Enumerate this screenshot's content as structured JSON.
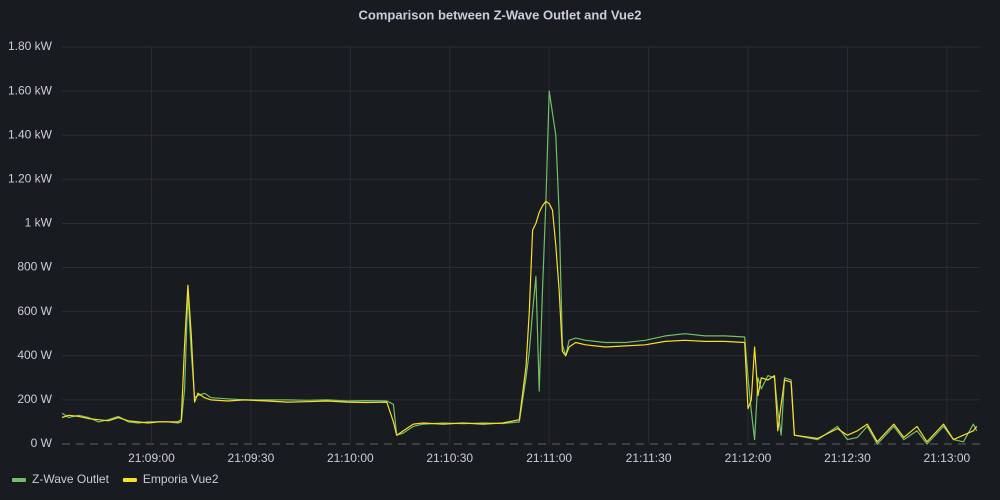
{
  "chart_data": {
    "type": "line",
    "title": "Comparison between Z-Wave Outlet and Vue2",
    "x": [
      76113,
      76115,
      76118,
      76121,
      76124,
      76127,
      76130,
      76133,
      76136,
      76139,
      76142,
      76145,
      76148,
      76149,
      76150,
      76151,
      76152,
      76153,
      76154,
      76156,
      76158,
      76163,
      76168,
      76175,
      76181,
      76187,
      76193,
      76199,
      76205,
      76211,
      76213,
      76214,
      76216,
      76219,
      76222,
      76228,
      76234,
      76240,
      76246,
      76251,
      76253,
      76254,
      76255,
      76256,
      76257,
      76258,
      76259,
      76260,
      76261,
      76262,
      76263,
      76264,
      76265,
      76266,
      76268,
      76271,
      76277,
      76283,
      76289,
      76295,
      76301,
      76307,
      76313,
      76319,
      76320,
      76321,
      76322,
      76323,
      76324,
      76326,
      76328,
      76329,
      76330,
      76331,
      76333,
      76334,
      76341,
      76347,
      76350,
      76353,
      76356,
      76359,
      76364,
      76367,
      76371,
      76374,
      76379,
      76382,
      76385,
      76388,
      76389
    ],
    "series": [
      {
        "name": "Z-Wave Outlet",
        "color": "#73bf69",
        "values": [
          140,
          120,
          130,
          120,
          100,
          110,
          125,
          100,
          95,
          100,
          100,
          100,
          95,
          100,
          250,
          690,
          420,
          210,
          220,
          230,
          210,
          205,
          200,
          200,
          200,
          198,
          200,
          195,
          197,
          195,
          180,
          40,
          50,
          80,
          90,
          95,
          92,
          95,
          93,
          100,
          300,
          420,
          600,
          760,
          240,
          700,
          1100,
          1600,
          1500,
          1400,
          1050,
          450,
          400,
          470,
          480,
          470,
          460,
          460,
          470,
          490,
          500,
          490,
          490,
          485,
          300,
          150,
          20,
          300,
          250,
          310,
          300,
          150,
          40,
          300,
          290,
          40,
          20,
          80,
          20,
          30,
          80,
          0,
          80,
          20,
          60,
          0,
          80,
          20,
          10,
          90,
          60
        ]
      },
      {
        "name": "Emporia Vue2",
        "color": "#fade2a",
        "values": [
          120,
          130,
          125,
          115,
          110,
          105,
          120,
          105,
          100,
          95,
          100,
          100,
          100,
          110,
          450,
          720,
          500,
          190,
          230,
          210,
          200,
          195,
          200,
          195,
          190,
          192,
          195,
          190,
          188,
          190,
          100,
          40,
          60,
          90,
          95,
          90,
          95,
          90,
          95,
          110,
          350,
          600,
          970,
          1000,
          1050,
          1080,
          1100,
          1090,
          1060,
          900,
          700,
          420,
          400,
          440,
          460,
          450,
          440,
          445,
          450,
          465,
          470,
          465,
          465,
          460,
          160,
          200,
          440,
          220,
          300,
          290,
          310,
          60,
          180,
          290,
          280,
          40,
          25,
          70,
          40,
          60,
          90,
          10,
          90,
          30,
          80,
          10,
          90,
          20,
          40,
          60,
          80
        ]
      }
    ],
    "xlim": [
      76113,
      76390
    ],
    "xticks": [
      {
        "value": 76140,
        "label": "21:09:00"
      },
      {
        "value": 76170,
        "label": "21:09:30"
      },
      {
        "value": 76200,
        "label": "21:10:00"
      },
      {
        "value": 76230,
        "label": "21:10:30"
      },
      {
        "value": 76260,
        "label": "21:11:00"
      },
      {
        "value": 76290,
        "label": "21:11:30"
      },
      {
        "value": 76320,
        "label": "21:12:00"
      },
      {
        "value": 76350,
        "label": "21:12:30"
      },
      {
        "value": 76380,
        "label": "21:13:00"
      }
    ],
    "ylim": [
      0,
      1800
    ],
    "yticks": [
      {
        "value": 0,
        "label": "0 W"
      },
      {
        "value": 200,
        "label": "200 W"
      },
      {
        "value": 400,
        "label": "400 W"
      },
      {
        "value": 600,
        "label": "600 W"
      },
      {
        "value": 800,
        "label": "800 W"
      },
      {
        "value": 1000,
        "label": "1 kW"
      },
      {
        "value": 1200,
        "label": "1.20 kW"
      },
      {
        "value": 1400,
        "label": "1.40 kW"
      },
      {
        "value": 1600,
        "label": "1.60 kW"
      },
      {
        "value": 1800,
        "label": "1.80 kW"
      }
    ],
    "grid": true,
    "legend": "bottom-left"
  }
}
